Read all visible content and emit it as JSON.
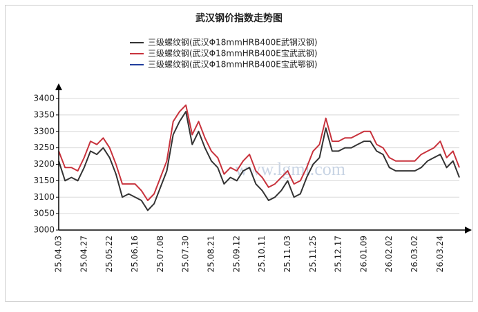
{
  "chart_data": {
    "type": "line",
    "title": "武汉钢价指数走势图",
    "watermark": "www.lgmi.com",
    "categories": [
      "25.04.03",
      null,
      null,
      null,
      "25.04.27",
      null,
      null,
      null,
      "25.05.22",
      null,
      null,
      null,
      "25.06.16",
      null,
      null,
      null,
      "25.07.08",
      null,
      null,
      null,
      "25.07.30",
      null,
      null,
      null,
      "25.08.21",
      null,
      null,
      null,
      "25.09.12",
      null,
      null,
      null,
      "25.10.11",
      null,
      null,
      null,
      "25.11.03",
      null,
      null,
      null,
      "25.11.25",
      null,
      null,
      null,
      "25.12.17",
      null,
      null,
      null,
      "26.01.09",
      null,
      null,
      null,
      "26.02.02",
      null,
      null,
      null,
      "26.03.02",
      null,
      null,
      null,
      "26.03.24",
      null,
      null,
      null
    ],
    "series": [
      {
        "name": "三级螺纹钢(武汉Φ18mmHRB400E武钢汉钢)",
        "color": "#333333",
        "values": [
          3210,
          3150,
          3160,
          3150,
          3190,
          3240,
          3230,
          3250,
          3220,
          3170,
          3100,
          3110,
          3100,
          3090,
          3060,
          3080,
          3130,
          3180,
          3290,
          3330,
          3360,
          3260,
          3300,
          3250,
          3210,
          3190,
          3140,
          3160,
          3150,
          3180,
          3190,
          3140,
          3120,
          3090,
          3100,
          3120,
          3150,
          3100,
          3110,
          3160,
          3200,
          3220,
          3310,
          3240,
          3240,
          3250,
          3250,
          3260,
          3270,
          3270,
          3240,
          3230,
          3190,
          3180,
          3180,
          3180,
          3180,
          3190,
          3210,
          3220,
          3230,
          3190,
          3210,
          3160
        ]
      },
      {
        "name": "三级螺纹钢(武汉Φ18mmHRB400E宝武武钢)",
        "color": "#c8323c",
        "values": [
          3240,
          3190,
          3190,
          3180,
          3220,
          3270,
          3260,
          3280,
          3250,
          3200,
          3140,
          3140,
          3140,
          3120,
          3090,
          3110,
          3160,
          3210,
          3330,
          3360,
          3380,
          3290,
          3330,
          3280,
          3240,
          3220,
          3170,
          3190,
          3180,
          3210,
          3230,
          3180,
          3160,
          3130,
          3140,
          3160,
          3180,
          3140,
          3150,
          3190,
          3240,
          3260,
          3340,
          3270,
          3270,
          3280,
          3280,
          3290,
          3300,
          3300,
          3260,
          3250,
          3220,
          3210,
          3210,
          3210,
          3210,
          3230,
          3240,
          3250,
          3270,
          3220,
          3240,
          3190
        ]
      },
      {
        "name": "三级螺纹钢(武汉Φ18mmHRB400E宝武鄂钢)",
        "color": "#1f3c9c",
        "values": [
          null,
          null,
          null,
          null,
          null,
          null,
          null,
          null,
          null,
          null,
          null,
          null,
          null,
          null,
          null,
          null,
          null,
          null,
          null,
          null,
          null,
          null,
          null,
          null,
          null,
          null,
          null,
          null,
          null,
          null,
          null,
          null,
          null,
          null,
          null,
          null,
          null,
          null,
          null,
          null,
          null,
          null,
          null,
          null,
          null,
          null,
          null,
          null,
          null,
          null,
          null,
          null,
          null,
          null,
          null,
          null,
          null,
          null,
          null,
          null,
          null,
          null,
          null,
          null
        ]
      }
    ],
    "ylim": [
      3000,
      3400
    ],
    "yticks": [
      3000,
      3050,
      3100,
      3150,
      3200,
      3250,
      3300,
      3350,
      3400
    ],
    "grid": true
  }
}
